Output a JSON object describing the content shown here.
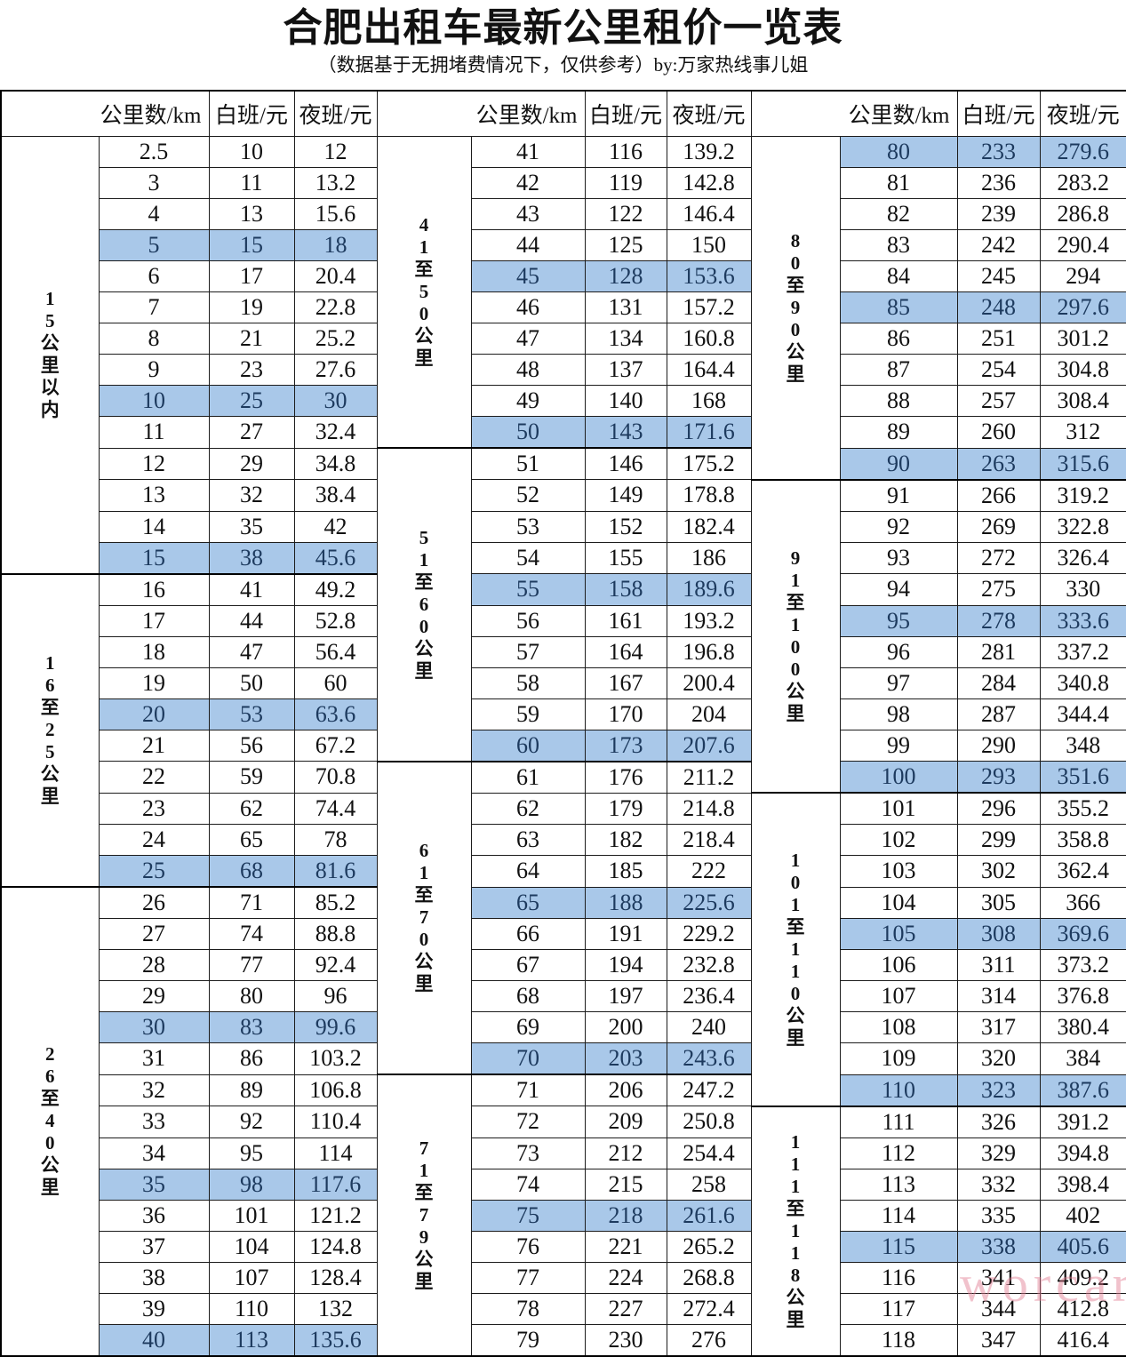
{
  "title": "合肥出租车最新公里租价一览表",
  "subtitle": "（数据基于无拥堵费情况下，仅供参考）by:万家热线事儿姐",
  "watermark": "worcar",
  "columns": [
    "公里数/km",
    "白班/元",
    "夜班/元"
  ],
  "colors": {
    "highlight_bg": "#a9c8e9",
    "highlight_text": "#1d3a5e",
    "border": "#000000",
    "watermark_pink": "#e2798f"
  },
  "highlight_multiple": 5,
  "panels": [
    {
      "groups": [
        {
          "label": "15公里以内",
          "rows": [
            [
              2.5,
              10,
              12
            ],
            [
              3,
              11,
              13.2
            ],
            [
              4,
              13,
              15.6
            ],
            [
              5,
              15,
              18
            ],
            [
              6,
              17,
              20.4
            ],
            [
              7,
              19,
              22.8
            ],
            [
              8,
              21,
              25.2
            ],
            [
              9,
              23,
              27.6
            ],
            [
              10,
              25,
              30
            ],
            [
              11,
              27,
              32.4
            ],
            [
              12,
              29,
              34.8
            ],
            [
              13,
              32,
              38.4
            ],
            [
              14,
              35,
              42
            ],
            [
              15,
              38,
              45.6
            ]
          ]
        },
        {
          "label": "16至25公里",
          "rows": [
            [
              16,
              41,
              49.2
            ],
            [
              17,
              44,
              52.8
            ],
            [
              18,
              47,
              56.4
            ],
            [
              19,
              50,
              60
            ],
            [
              20,
              53,
              63.6
            ],
            [
              21,
              56,
              67.2
            ],
            [
              22,
              59,
              70.8
            ],
            [
              23,
              62,
              74.4
            ],
            [
              24,
              65,
              78
            ],
            [
              25,
              68,
              81.6
            ]
          ]
        },
        {
          "label": "26至40公里",
          "rows": [
            [
              26,
              71,
              85.2
            ],
            [
              27,
              74,
              88.8
            ],
            [
              28,
              77,
              92.4
            ],
            [
              29,
              80,
              96
            ],
            [
              30,
              83,
              99.6
            ],
            [
              31,
              86,
              103.2
            ],
            [
              32,
              89,
              106.8
            ],
            [
              33,
              92,
              110.4
            ],
            [
              34,
              95,
              114
            ],
            [
              35,
              98,
              117.6
            ],
            [
              36,
              101,
              121.2
            ],
            [
              37,
              104,
              124.8
            ],
            [
              38,
              107,
              128.4
            ],
            [
              39,
              110,
              132
            ],
            [
              40,
              113,
              135.6
            ]
          ]
        }
      ]
    },
    {
      "groups": [
        {
          "label": "41至50公里",
          "rows": [
            [
              41,
              116,
              139.2
            ],
            [
              42,
              119,
              142.8
            ],
            [
              43,
              122,
              146.4
            ],
            [
              44,
              125,
              150
            ],
            [
              45,
              128,
              153.6
            ],
            [
              46,
              131,
              157.2
            ],
            [
              47,
              134,
              160.8
            ],
            [
              48,
              137,
              164.4
            ],
            [
              49,
              140,
              168
            ],
            [
              50,
              143,
              171.6
            ]
          ]
        },
        {
          "label": "51至60公里",
          "rows": [
            [
              51,
              146,
              175.2
            ],
            [
              52,
              149,
              178.8
            ],
            [
              53,
              152,
              182.4
            ],
            [
              54,
              155,
              186
            ],
            [
              55,
              158,
              189.6
            ],
            [
              56,
              161,
              193.2
            ],
            [
              57,
              164,
              196.8
            ],
            [
              58,
              167,
              200.4
            ],
            [
              59,
              170,
              204
            ],
            [
              60,
              173,
              207.6
            ]
          ]
        },
        {
          "label": "61至70公里",
          "rows": [
            [
              61,
              176,
              211.2
            ],
            [
              62,
              179,
              214.8
            ],
            [
              63,
              182,
              218.4
            ],
            [
              64,
              185,
              222
            ],
            [
              65,
              188,
              225.6
            ],
            [
              66,
              191,
              229.2
            ],
            [
              67,
              194,
              232.8
            ],
            [
              68,
              197,
              236.4
            ],
            [
              69,
              200,
              240
            ],
            [
              70,
              203,
              243.6
            ]
          ]
        },
        {
          "label": "71至79公里",
          "rows": [
            [
              71,
              206,
              247.2
            ],
            [
              72,
              209,
              250.8
            ],
            [
              73,
              212,
              254.4
            ],
            [
              74,
              215,
              258
            ],
            [
              75,
              218,
              261.6
            ],
            [
              76,
              221,
              265.2
            ],
            [
              77,
              224,
              268.8
            ],
            [
              78,
              227,
              272.4
            ],
            [
              79,
              230,
              276
            ]
          ]
        }
      ]
    },
    {
      "groups": [
        {
          "label": "80至90公里",
          "rows": [
            [
              80,
              233,
              279.6
            ],
            [
              81,
              236,
              283.2
            ],
            [
              82,
              239,
              286.8
            ],
            [
              83,
              242,
              290.4
            ],
            [
              84,
              245,
              294
            ],
            [
              85,
              248,
              297.6
            ],
            [
              86,
              251,
              301.2
            ],
            [
              87,
              254,
              304.8
            ],
            [
              88,
              257,
              308.4
            ],
            [
              89,
              260,
              312
            ],
            [
              90,
              263,
              315.6
            ]
          ]
        },
        {
          "label": "91至100公里",
          "rows": [
            [
              91,
              266,
              319.2
            ],
            [
              92,
              269,
              322.8
            ],
            [
              93,
              272,
              326.4
            ],
            [
              94,
              275,
              330
            ],
            [
              95,
              278,
              333.6
            ],
            [
              96,
              281,
              337.2
            ],
            [
              97,
              284,
              340.8
            ],
            [
              98,
              287,
              344.4
            ],
            [
              99,
              290,
              348
            ],
            [
              100,
              293,
              351.6
            ]
          ]
        },
        {
          "label": "101至110公里",
          "rows": [
            [
              101,
              296,
              355.2
            ],
            [
              102,
              299,
              358.8
            ],
            [
              103,
              302,
              362.4
            ],
            [
              104,
              305,
              366
            ],
            [
              105,
              308,
              369.6
            ],
            [
              106,
              311,
              373.2
            ],
            [
              107,
              314,
              376.8
            ],
            [
              108,
              317,
              380.4
            ],
            [
              109,
              320,
              384
            ],
            [
              110,
              323,
              387.6
            ]
          ]
        },
        {
          "label": "111至118公里",
          "rows": [
            [
              111,
              326,
              391.2
            ],
            [
              112,
              329,
              394.8
            ],
            [
              113,
              332,
              398.4
            ],
            [
              114,
              335,
              402
            ],
            [
              115,
              338,
              405.6
            ],
            [
              116,
              341,
              409.2
            ],
            [
              117,
              344,
              412.8
            ],
            [
              118,
              347,
              416.4
            ]
          ]
        }
      ]
    }
  ]
}
